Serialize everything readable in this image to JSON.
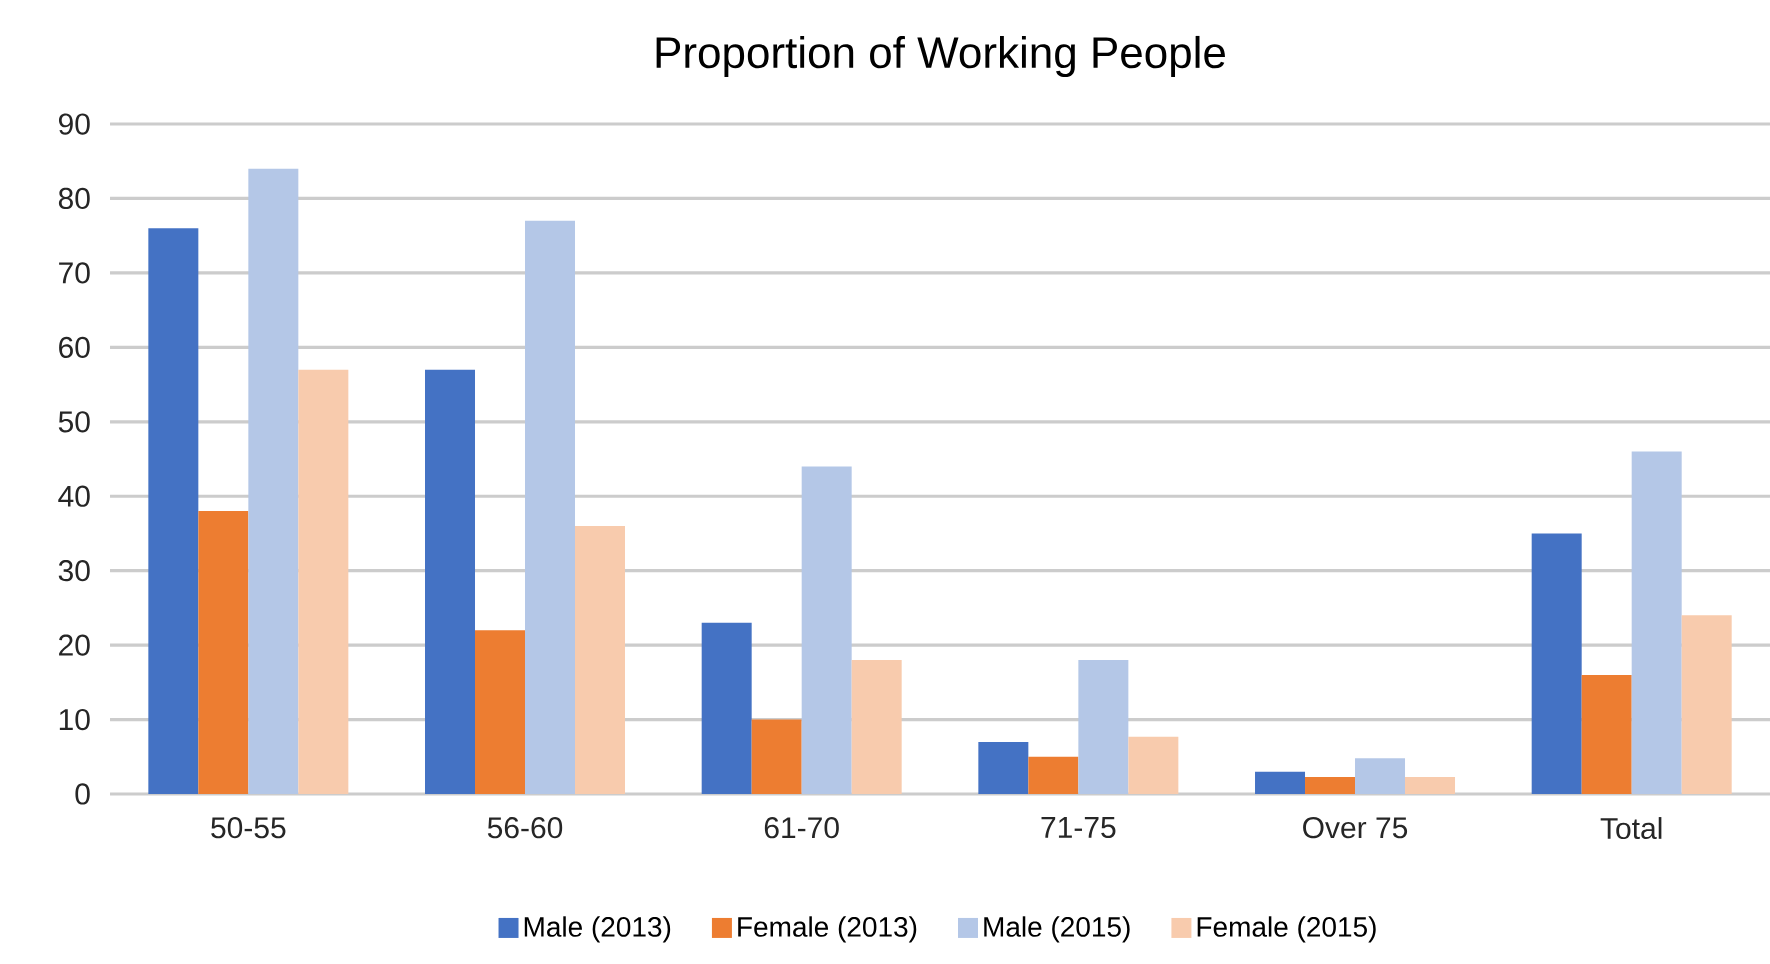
{
  "chart_data": {
    "type": "bar",
    "title": "Proportion of Working People",
    "categories": [
      "50-55",
      "56-60",
      "61-70",
      "71-75",
      "Over 75",
      "Total"
    ],
    "series": [
      {
        "name": "Male (2013)",
        "color": "#4472c4",
        "values": [
          76,
          57,
          23,
          7,
          3,
          35
        ]
      },
      {
        "name": "Female (2013)",
        "color": "#ed7d31",
        "values": [
          38,
          22,
          10,
          5,
          2.3,
          16
        ]
      },
      {
        "name": "Male (2015)",
        "color": "#b4c7e7",
        "values": [
          84,
          77,
          44,
          18,
          4.8,
          46
        ]
      },
      {
        "name": "Female (2015)",
        "color": "#f8cbad",
        "values": [
          57,
          36,
          18,
          7.7,
          2.3,
          24
        ]
      }
    ],
    "ylim": [
      0,
      90
    ],
    "yticks": [
      0,
      10,
      20,
      30,
      40,
      50,
      60,
      70,
      80,
      90
    ],
    "grid": "y",
    "legend": "bottom"
  }
}
